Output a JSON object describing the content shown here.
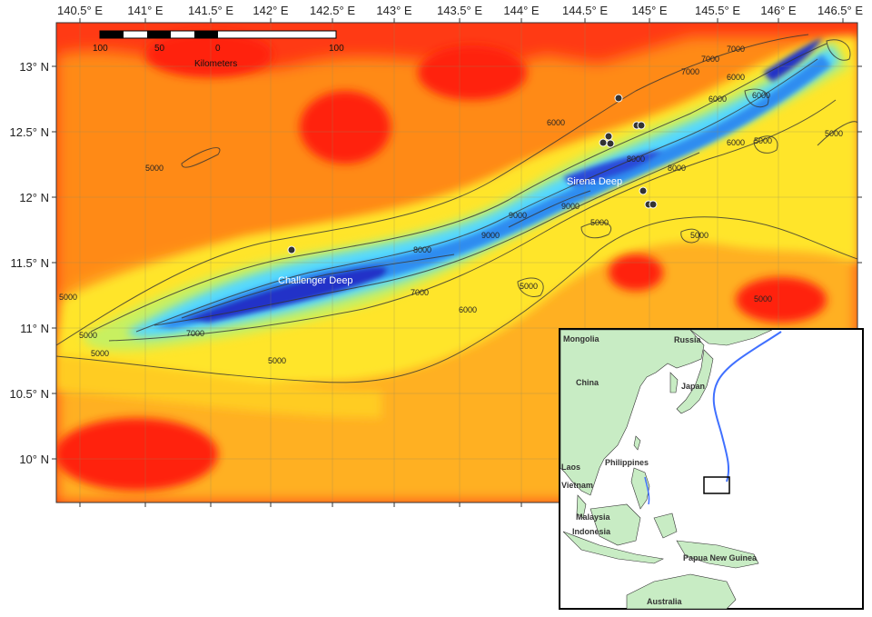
{
  "map": {
    "lon_ticks": [
      "140.5° E",
      "141° E",
      "141.5° E",
      "142° E",
      "142.5° E",
      "143° E",
      "143.5° E",
      "144° E",
      "144.5° E",
      "145° E",
      "145.5° E",
      "146° E",
      "146.5° E"
    ],
    "lat_ticks": [
      "13° N",
      "12.5° N",
      "12° N",
      "11.5° N",
      "11° N",
      "10.5° N",
      "10° N"
    ],
    "features": {
      "challenger": "Challenger Deep",
      "sirena": "Sirena Deep"
    },
    "contours": {
      "c1": "5000",
      "c2": "5000",
      "c3": "5000",
      "c4": "5000",
      "c5": "5000",
      "c6": "6000",
      "c7": "7000",
      "c8": "7000",
      "c9": "8000",
      "c10": "9000",
      "c11": "9000",
      "c12": "6000",
      "c13": "5000",
      "c14": "5000",
      "c15": "7000",
      "c16": "8000",
      "c17": "6000",
      "c18": "6000",
      "c19": "5000",
      "c20": "7000",
      "c21": "9000",
      "c22": "8000",
      "c23": "5000",
      "c24": "6000",
      "c25": "5000",
      "c26": "7000",
      "c27": "6000",
      "c28": "5000"
    },
    "scale_bar": {
      "ticks": [
        "100",
        "50",
        "0",
        "100"
      ],
      "unit": "Kilometers"
    },
    "colors": {
      "deepest": "#2030c8",
      "deep": "#2fa0ff",
      "mid": "#60e0ff",
      "shallow_mid": "#ffff20",
      "shallow": "#ffa010",
      "shallowest": "#ff2010"
    }
  },
  "inset": {
    "labels": {
      "mongolia": "Mongolia",
      "russia": "Russia",
      "china": "China",
      "japan": "Japan",
      "philippines": "Philippines",
      "laos": "Laos",
      "vietnam": "Vietnam",
      "malaysia": "Malaysia",
      "indonesia": "Indonesia",
      "png": "Papua New Guinea",
      "australia": "Australia"
    }
  }
}
